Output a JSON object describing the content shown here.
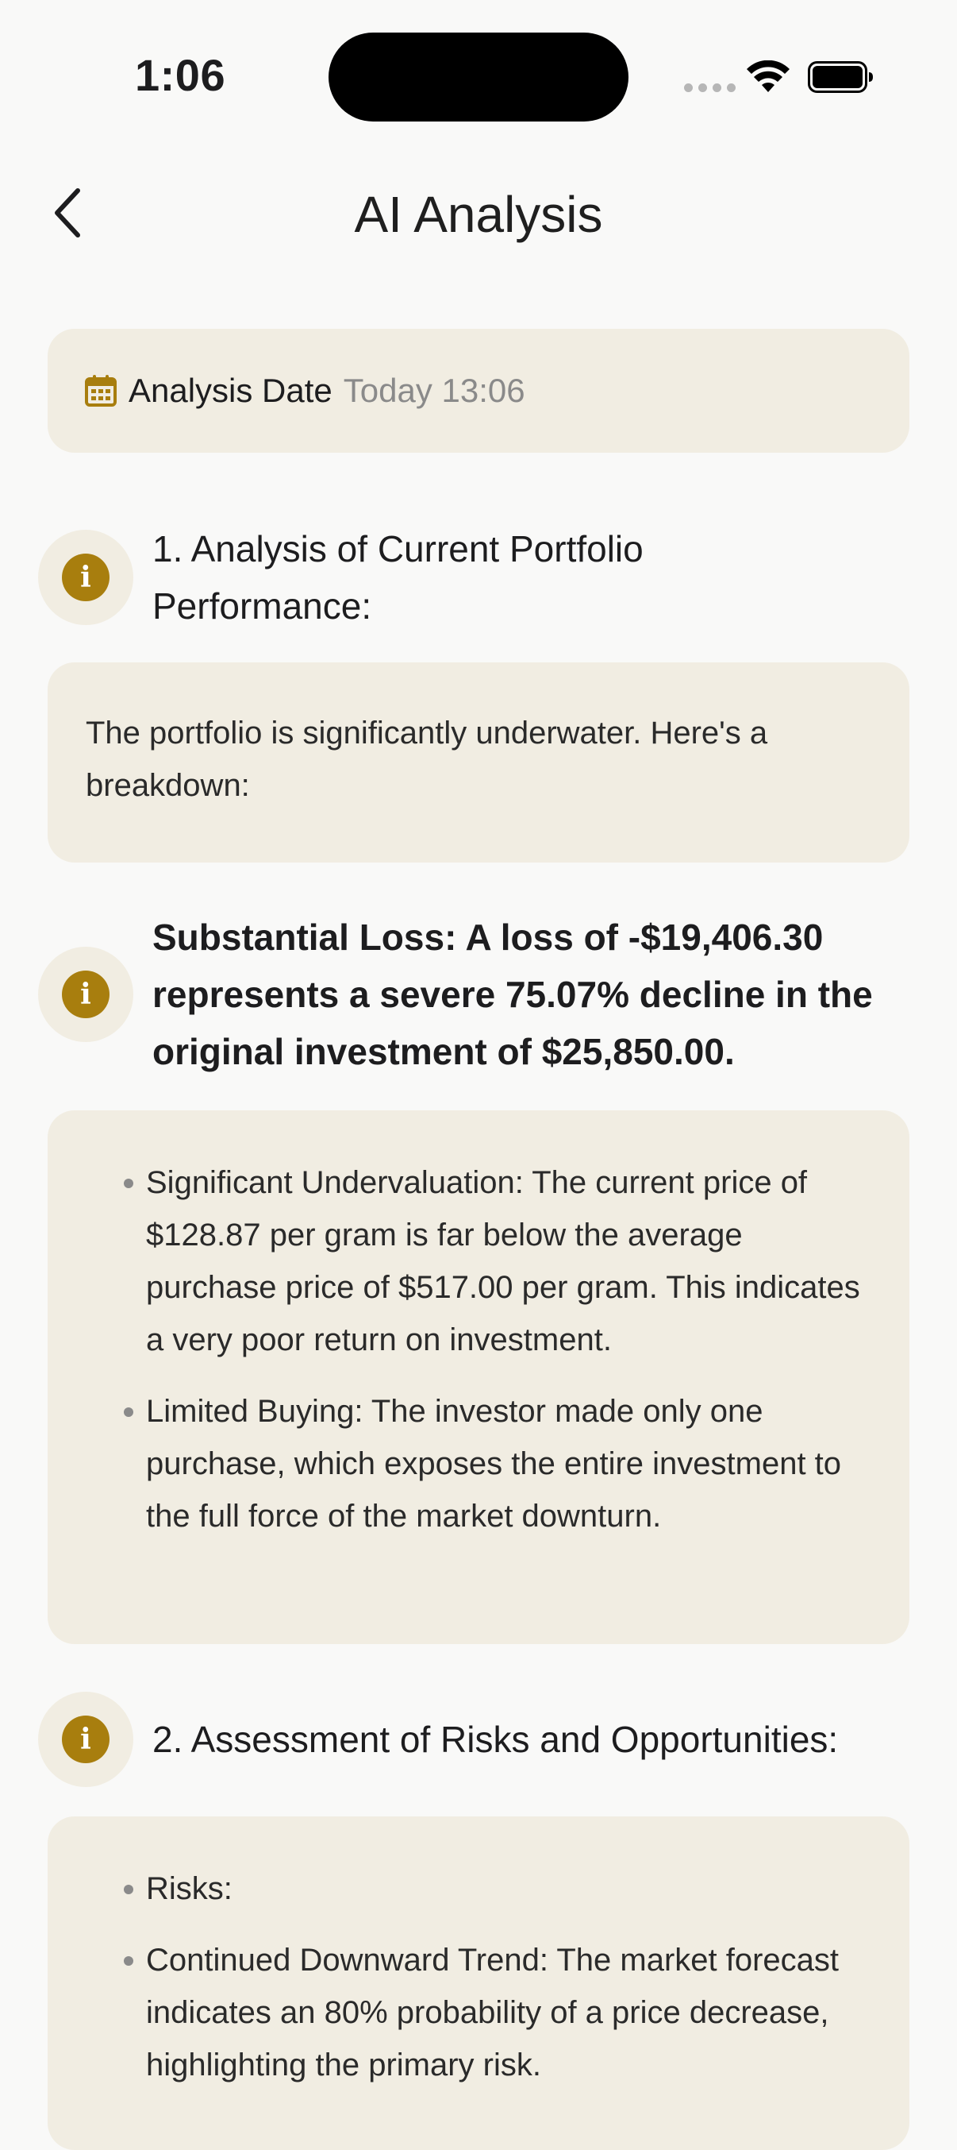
{
  "status_bar": {
    "time": "1:06"
  },
  "header": {
    "title": "AI Analysis"
  },
  "date_card": {
    "label": "Analysis Date",
    "value": "Today 13:06"
  },
  "sections": [
    {
      "title": "1. Analysis of Current Portfolio Performance:",
      "body": "The portfolio is significantly underwater. Here's a breakdown:"
    },
    {
      "title": "Substantial Loss: A loss of -$19,406.30 represents a severe 75.07% decline in the original investment of $25,850.00.",
      "bullets": [
        "Significant Undervaluation: The current price of $128.87 per gram is far below the average purchase price of $517.00 per gram. This indicates a very poor return on investment.",
        "Limited Buying: The investor made only one purchase, which exposes the entire investment to the full force of the market downturn."
      ]
    },
    {
      "title": "2. Assessment of Risks and Opportunities:",
      "bullets": [
        "Risks:",
        "Continued Downward Trend: The market forecast indicates an 80% probability of a price decrease, highlighting the primary risk."
      ]
    }
  ],
  "colors": {
    "accent": "#a87e0e",
    "card_bg": "#f1ede2",
    "page_bg": "#f9f9f8"
  }
}
